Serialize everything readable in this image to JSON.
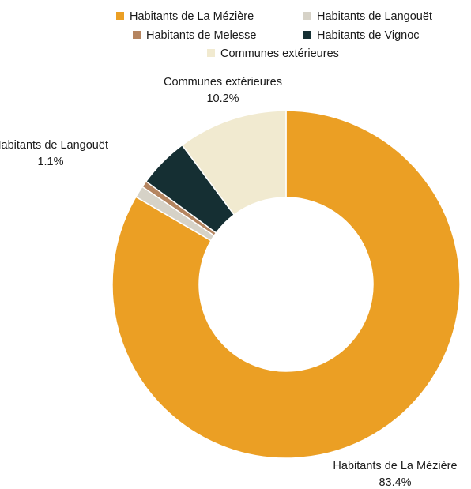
{
  "chart_data": {
    "type": "pie",
    "donut": true,
    "title": "",
    "categories": [
      "Habitants de La Mézière",
      "Habitants de Langouët",
      "Habitants de Melesse",
      "Habitants de Vignoc",
      "Communes extérieures"
    ],
    "values": [
      83.4,
      1.1,
      0.6,
      4.7,
      10.2
    ],
    "colors": [
      "#eb9f24",
      "#d6d2c7",
      "#b58560",
      "#152f33",
      "#f1ead0"
    ],
    "legend_position": "top",
    "data_labels": [
      {
        "name": "Habitants de La Mézière",
        "value": "83.4%"
      },
      {
        "name": "Habitants de Langouët",
        "value": "1.1%"
      },
      {
        "name": "Communes extérieures",
        "value": "10.2%"
      }
    ]
  }
}
